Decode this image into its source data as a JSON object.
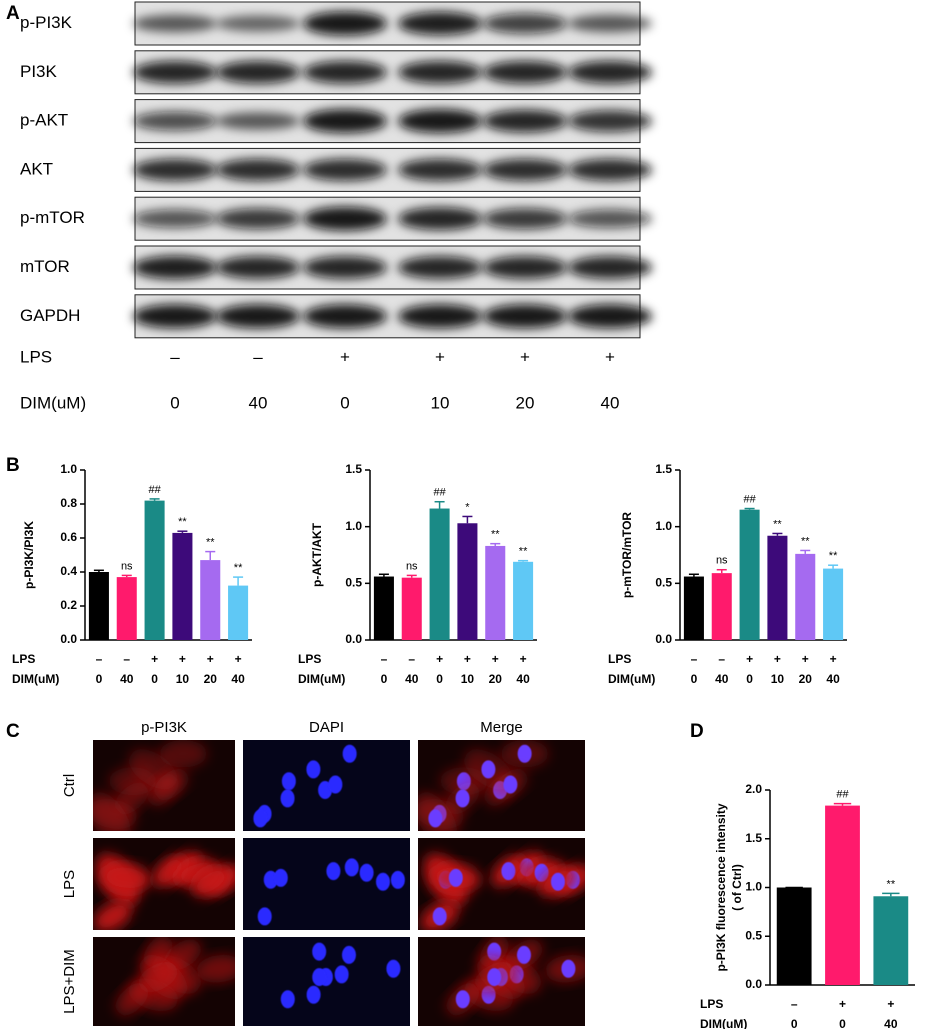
{
  "panels": [
    "A",
    "B",
    "C",
    "D"
  ],
  "blot": {
    "rows": [
      "p-PI3K",
      "PI3K",
      "p-AKT",
      "AKT",
      "p-mTOR",
      "mTOR",
      "GAPDH"
    ],
    "lps_label": "LPS",
    "lps": [
      "–",
      "–",
      "+",
      "+",
      "+",
      "+"
    ],
    "dim_label": "DIM(uM)",
    "dim": [
      "0",
      "40",
      "0",
      "10",
      "20",
      "40"
    ]
  },
  "images": {
    "columns": [
      "p-PI3K",
      "DAPI",
      "Merge"
    ],
    "rows": [
      "Ctrl",
      "LPS",
      "LPS+DIM"
    ]
  },
  "chart_data": [
    {
      "type": "bar",
      "ylabel": "p-PI3K/PI3K",
      "row_labels": [
        "LPS",
        "DIM(uM)"
      ],
      "lps": [
        "–",
        "–",
        "+",
        "+",
        "+",
        "+"
      ],
      "categories": [
        "0",
        "40",
        "0",
        "10",
        "20",
        "40"
      ],
      "values": [
        0.4,
        0.37,
        0.82,
        0.63,
        0.47,
        0.32
      ],
      "errors": [
        0.01,
        0.01,
        0.01,
        0.01,
        0.05,
        0.05
      ],
      "annotations": [
        null,
        "ns",
        "##",
        "**",
        "**",
        "**"
      ],
      "colors": [
        "#000000",
        "#ff1a6c",
        "#1a8a86",
        "#3d0a7a",
        "#a56af0",
        "#5fc8f5"
      ],
      "ylim": [
        0,
        1.0
      ],
      "yticks": [
        {
          "value": 0,
          "label": "0.0"
        },
        0.2,
        0.4,
        0.6,
        0.8,
        {
          "value": 1.0,
          "label": "1.0"
        }
      ]
    },
    {
      "type": "bar",
      "ylabel": "p-AKT/AKT",
      "row_labels": [
        "LPS",
        "DIM(uM)"
      ],
      "lps": [
        "–",
        "–",
        "+",
        "+",
        "+",
        "+"
      ],
      "categories": [
        "0",
        "40",
        "0",
        "10",
        "20",
        "40"
      ],
      "values": [
        0.56,
        0.55,
        1.16,
        1.03,
        0.83,
        0.69
      ],
      "errors": [
        0.02,
        0.02,
        0.06,
        0.06,
        0.02,
        0.01
      ],
      "annotations": [
        null,
        "ns",
        "##",
        "*",
        "**",
        "**"
      ],
      "colors": [
        "#000000",
        "#ff1a6c",
        "#1a8a86",
        "#3d0a7a",
        "#a56af0",
        "#5fc8f5"
      ],
      "ylim": [
        0,
        1.5
      ],
      "yticks": [
        {
          "value": 0,
          "label": "0.0"
        },
        0.5,
        {
          "value": 1.0,
          "label": "1.0"
        },
        1.5
      ]
    },
    {
      "type": "bar",
      "ylabel": "p-mTOR/mTOR",
      "row_labels": [
        "LPS",
        "DIM(uM)"
      ],
      "lps": [
        "–",
        "–",
        "+",
        "+",
        "+",
        "+"
      ],
      "categories": [
        "0",
        "40",
        "0",
        "10",
        "20",
        "40"
      ],
      "values": [
        0.56,
        0.59,
        1.15,
        0.92,
        0.76,
        0.63
      ],
      "errors": [
        0.02,
        0.03,
        0.01,
        0.02,
        0.03,
        0.03
      ],
      "annotations": [
        null,
        "ns",
        "##",
        "**",
        "**",
        "**"
      ],
      "colors": [
        "#000000",
        "#ff1a6c",
        "#1a8a86",
        "#3d0a7a",
        "#a56af0",
        "#5fc8f5"
      ],
      "ylim": [
        0,
        1.5
      ],
      "yticks": [
        {
          "value": 0,
          "label": "0.0"
        },
        0.5,
        {
          "value": 1.0,
          "label": "1.0"
        },
        1.5
      ]
    },
    {
      "type": "bar",
      "ylabel": "p-PI3K  fluorescence intensity",
      "ylabel2": "( of Ctrl)",
      "row_labels": [
        "LPS",
        "DIM(uM)"
      ],
      "lps": [
        "–",
        "+",
        "+"
      ],
      "categories": [
        "0",
        "0",
        "40"
      ],
      "values": [
        1.0,
        1.84,
        0.91
      ],
      "errors": [
        0,
        0.02,
        0.03
      ],
      "annotations": [
        null,
        "##",
        "**"
      ],
      "colors": [
        "#000000",
        "#ff1a6c",
        "#1a8a86"
      ],
      "ylim": [
        0,
        2.0
      ],
      "yticks": [
        {
          "value": 0,
          "label": "0.0"
        },
        0.5,
        {
          "value": 1.0,
          "label": "1.0"
        },
        1.5,
        {
          "value": 2.0,
          "label": "2.0"
        }
      ]
    }
  ]
}
